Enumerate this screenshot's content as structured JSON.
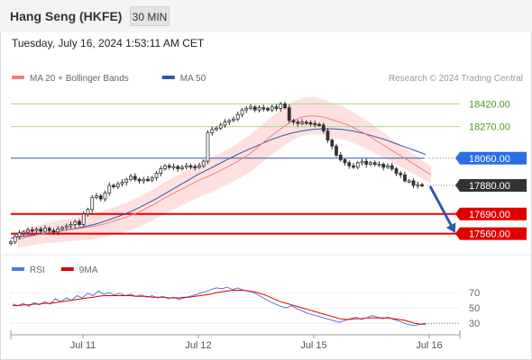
{
  "header": {
    "title": "Hang Seng (HKFE)",
    "interval_label": "30 MIN"
  },
  "timestamp": "Tuesday, July 16, 2024 1:53:11 AM CET",
  "colors": {
    "bollinger_ma20": "#f08080",
    "bollinger_band_fill": "#ffd6d6",
    "ma50": "#2e5aa8",
    "candle_up": "#333333",
    "candle_down": "#333333",
    "resistance_line": "#a8d88a",
    "support_line": "#e00000",
    "pivot_line": "#2e5aa8",
    "forecast_arrow": "#2e5aa8",
    "rsi": "#4a7fd6",
    "rsi_ma": "#e00000"
  },
  "chart_data": [
    {
      "type": "candlestick",
      "title": "",
      "legend": [
        {
          "name": "MA 20 + Bollinger Bands",
          "color": "#f08080"
        },
        {
          "name": "MA 50",
          "color": "#2e5aa8"
        }
      ],
      "credit": "Research © 2024 Trading Central",
      "x_tick_labels": [
        "Jul 11",
        "Jul 12",
        "Jul 15",
        "Jul 16"
      ],
      "ylim": [
        17450,
        18560
      ],
      "levels": [
        {
          "label": "18420.00",
          "value": 18420,
          "role": "resistance"
        },
        {
          "label": "18270.00",
          "value": 18270,
          "role": "resistance"
        },
        {
          "label": "18060.00",
          "value": 18060,
          "role": "pivot"
        },
        {
          "label": "17880.00",
          "value": 17880,
          "role": "last"
        },
        {
          "label": "17690.00",
          "value": 17690,
          "role": "support"
        },
        {
          "label": "17560.00",
          "value": 17560,
          "role": "support"
        }
      ],
      "close": [
        17505,
        17540,
        17565,
        17570,
        17585,
        17580,
        17590,
        17575,
        17595,
        17580,
        17570,
        17590,
        17600,
        17610,
        17620,
        17640,
        17620,
        17690,
        17720,
        17800,
        17810,
        17790,
        17830,
        17880,
        17870,
        17890,
        17900,
        17920,
        17940,
        17920,
        17910,
        17920,
        17915,
        17930,
        17960,
        17990,
        18010,
        18000,
        18005,
        17990,
        18000,
        18010,
        18005,
        18000,
        18010,
        18040,
        18230,
        18250,
        18260,
        18280,
        18300,
        18310,
        18320,
        18350,
        18380,
        18390,
        18400,
        18380,
        18395,
        18390,
        18380,
        18400,
        18390,
        18420,
        18395,
        18310,
        18300,
        18290,
        18300,
        18295,
        18290,
        18285,
        18280,
        18240,
        18180,
        18140,
        18080,
        18050,
        18030,
        18010,
        18000,
        18030,
        18040,
        18020,
        18030,
        18020,
        18020,
        18000,
        18010,
        17990,
        17960,
        17950,
        17910,
        17910,
        17880,
        17885,
        17880
      ],
      "ma20": [
        17520,
        17535,
        17545,
        17555,
        17565,
        17570,
        17578,
        17585,
        17592,
        17598,
        17605,
        17615,
        17625,
        17640,
        17655,
        17670,
        17690,
        17710,
        17735,
        17760,
        17790,
        17815,
        17840,
        17865,
        17890,
        17915,
        17935,
        17955,
        17980,
        18005,
        18030,
        18060,
        18090,
        18130,
        18170,
        18210,
        18245,
        18280,
        18310,
        18330,
        18340,
        18340,
        18335,
        18320,
        18305,
        18290,
        18270,
        18245,
        18220,
        18190,
        18160,
        18130,
        18100,
        18070,
        18040,
        18010,
        17980,
        17950
      ],
      "ma50": [
        17530,
        17540,
        17550,
        17560,
        17570,
        17580,
        17592,
        17605,
        17620,
        17640,
        17665,
        17690,
        17720,
        17755,
        17790,
        17830,
        17870,
        17910,
        17950,
        17985,
        18020,
        18055,
        18090,
        18120,
        18150,
        18180,
        18205,
        18225,
        18240,
        18250,
        18255,
        18255,
        18250,
        18240,
        18225,
        18205,
        18185,
        18160,
        18135,
        18110,
        18085
      ],
      "forecast": {
        "from": 17880,
        "to": 17560
      }
    },
    {
      "type": "line",
      "title": "",
      "legend": [
        {
          "name": "RSI",
          "color": "#4a7fd6"
        },
        {
          "name": "9MA",
          "color": "#e00000"
        }
      ],
      "y_ticks": [
        70,
        50,
        30
      ],
      "ylim": [
        15,
        90
      ],
      "series": [
        {
          "name": "RSI",
          "values": [
            55,
            53,
            56,
            52,
            57,
            54,
            58,
            55,
            62,
            58,
            63,
            60,
            66,
            63,
            69,
            66,
            72,
            68,
            70,
            67,
            69,
            66,
            68,
            65,
            67,
            64,
            66,
            63,
            65,
            62,
            64,
            61,
            63,
            65,
            67,
            69,
            71,
            74,
            76,
            75,
            77,
            74,
            76,
            73,
            72,
            70,
            66,
            62,
            58,
            55,
            52,
            50,
            53,
            49,
            46,
            43,
            41,
            39,
            37,
            35,
            33,
            31,
            34,
            36,
            38,
            35,
            37,
            40,
            38,
            36,
            38,
            35,
            33,
            30,
            28,
            27,
            29,
            30
          ]
        },
        {
          "name": "9MA",
          "values": [
            53,
            53,
            54,
            54,
            55,
            55,
            56,
            56,
            57,
            58,
            59,
            60,
            61,
            62,
            63,
            64,
            65,
            66,
            66,
            66,
            66,
            66,
            66,
            65,
            65,
            65,
            64,
            64,
            64,
            63,
            63,
            63,
            64,
            64,
            65,
            66,
            67,
            68,
            70,
            71,
            72,
            73,
            73,
            73,
            72,
            71,
            69,
            67,
            64,
            61,
            58,
            56,
            54,
            52,
            50,
            48,
            46,
            44,
            42,
            40,
            38,
            36,
            35,
            35,
            36,
            36,
            37,
            37,
            37,
            37,
            37,
            36,
            35,
            34,
            32,
            30,
            29,
            29
          ]
        }
      ]
    }
  ]
}
